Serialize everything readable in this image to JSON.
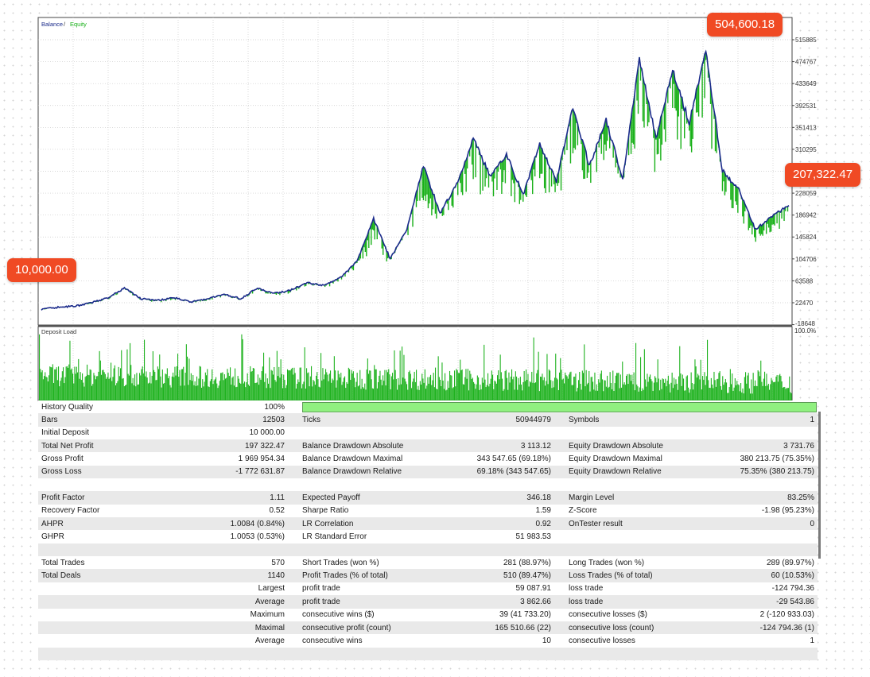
{
  "chart": {
    "legend_balance": "Balance",
    "legend_sep": " / ",
    "legend_equity": "Equity",
    "panel2_title": "Deposit Load",
    "y_ticks": [
      "515885",
      "474767",
      "433649",
      "392531",
      "351413",
      "310295",
      "228059",
      "186942",
      "145824",
      "104706",
      "63588",
      "22470",
      "-18648"
    ],
    "load_axis_top": "100.0%",
    "colors": {
      "balance": "#1a2a8a",
      "equity": "#18b018",
      "deposit_load": "#1fb21f",
      "callout": "#f04a24"
    },
    "series_balance": [
      10000,
      14000,
      16000,
      22000,
      32000,
      50000,
      30000,
      27000,
      32000,
      24000,
      30000,
      38000,
      30000,
      50000,
      40000,
      46000,
      60000,
      55000,
      70000,
      100000,
      180000,
      105000,
      160000,
      280000,
      190000,
      245000,
      330000,
      260000,
      300000,
      225000,
      320000,
      250000,
      390000,
      280000,
      365000,
      255000,
      480000,
      330000,
      460000,
      360000,
      495000,
      270000,
      235000,
      160000,
      185000,
      205000
    ],
    "series_equity_lows": [
      8000,
      12000,
      14000,
      19000,
      28000,
      45000,
      26000,
      22000,
      28000,
      20000,
      26000,
      34000,
      26000,
      44000,
      35000,
      40000,
      54000,
      48000,
      62000,
      88000,
      95000,
      98000,
      150000,
      140000,
      175000,
      200000,
      200000,
      218000,
      180000,
      210000,
      220000,
      225000,
      190000,
      240000,
      290000,
      240000,
      300000,
      260000,
      305000,
      300000,
      255000,
      225000,
      160000,
      125000,
      150000,
      170000
    ]
  },
  "callouts": {
    "peak": "504,600.18",
    "end": "207,322.47",
    "start": "10,000.00"
  },
  "stats": [
    {
      "c1": "History Quality",
      "v1": "100%",
      "c2": "",
      "v2": "",
      "c3": "",
      "v3": "",
      "bar": true
    },
    {
      "c1": "Bars",
      "v1": "12503",
      "c2": "Ticks",
      "v2": "50944979",
      "c3": "Symbols",
      "v3": "1"
    },
    {
      "c1": "Initial Deposit",
      "v1": "10 000.00",
      "c2": "",
      "v2": "",
      "c3": "",
      "v3": ""
    },
    {
      "c1": "Total Net Profit",
      "v1": "197 322.47",
      "c2": "Balance Drawdown Absolute",
      "v2": "3 113.12",
      "c3": "Equity Drawdown Absolute",
      "v3": "3 731.76"
    },
    {
      "c1": "Gross Profit",
      "v1": "1 969 954.34",
      "c2": "Balance Drawdown Maximal",
      "v2": "343 547.65 (69.18%)",
      "c3": "Equity Drawdown Maximal",
      "v3": "380 213.75 (75.35%)"
    },
    {
      "c1": "Gross Loss",
      "v1": "-1 772 631.87",
      "c2": "Balance Drawdown Relative",
      "v2": "69.18% (343 547.65)",
      "c3": "Equity Drawdown Relative",
      "v3": "75.35% (380 213.75)"
    },
    {
      "c1": "",
      "v1": "",
      "c2": "",
      "v2": "",
      "c3": "",
      "v3": ""
    },
    {
      "c1": "Profit Factor",
      "v1": "1.11",
      "c2": "Expected Payoff",
      "v2": "346.18",
      "c3": "Margin Level",
      "v3": "83.25%"
    },
    {
      "c1": "Recovery Factor",
      "v1": "0.52",
      "c2": "Sharpe Ratio",
      "v2": "1.59",
      "c3": "Z-Score",
      "v3": "-1.98 (95.23%)"
    },
    {
      "c1": "AHPR",
      "v1": "1.0084 (0.84%)",
      "c2": "LR Correlation",
      "v2": "0.92",
      "c3": "OnTester result",
      "v3": "0"
    },
    {
      "c1": "GHPR",
      "v1": "1.0053 (0.53%)",
      "c2": "LR Standard Error",
      "v2": "51 983.53",
      "c3": "",
      "v3": ""
    },
    {
      "c1": "",
      "v1": "",
      "c2": "",
      "v2": "",
      "c3": "",
      "v3": ""
    },
    {
      "c1": "Total Trades",
      "v1": "570",
      "c2": "Short Trades (won %)",
      "v2": "281 (88.97%)",
      "c3": "Long Trades (won %)",
      "v3": "289 (89.97%)"
    },
    {
      "c1": "Total Deals",
      "v1": "1140",
      "c2": "Profit Trades (% of total)",
      "v2": "510 (89.47%)",
      "c3": "Loss Trades (% of total)",
      "v3": "60 (10.53%)"
    },
    {
      "c1": "",
      "v1": "Largest",
      "c2": "profit trade",
      "v2": "59 087.91",
      "c3": "loss trade",
      "v3": "-124 794.36"
    },
    {
      "c1": "",
      "v1": "Average",
      "c2": "profit trade",
      "v2": "3 862.66",
      "c3": "loss trade",
      "v3": "-29 543.86"
    },
    {
      "c1": "",
      "v1": "Maximum",
      "c2": "consecutive wins ($)",
      "v2": "39 (41 733.20)",
      "c3": "consecutive losses ($)",
      "v3": "2 (-120 933.03)"
    },
    {
      "c1": "",
      "v1": "Maximal",
      "c2": "consecutive profit (count)",
      "v2": "165 510.66 (22)",
      "c3": "consecutive loss (count)",
      "v3": "-124 794.36 (1)"
    },
    {
      "c1": "",
      "v1": "Average",
      "c2": "consecutive wins",
      "v2": "10",
      "c3": "consecutive losses",
      "v3": "1"
    },
    {
      "c1": "",
      "v1": "",
      "c2": "",
      "v2": "",
      "c3": "",
      "v3": ""
    }
  ]
}
